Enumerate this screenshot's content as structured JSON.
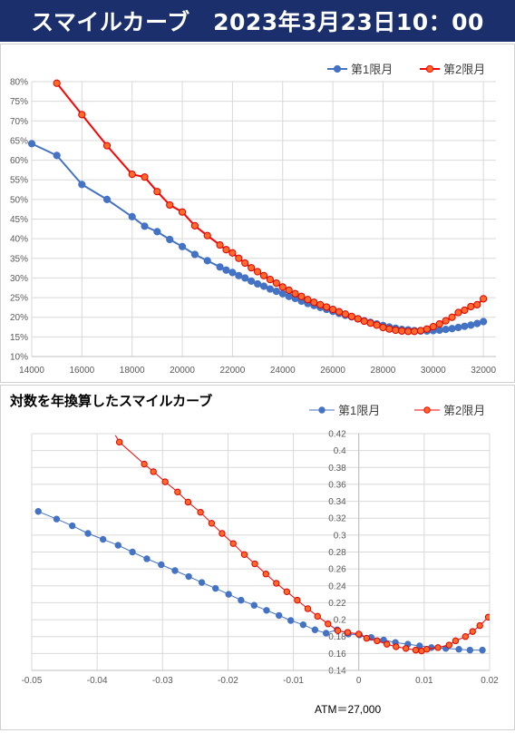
{
  "header": {
    "title": "スマイルカーブ　2023年3月23日10：00"
  },
  "chart_data": [
    {
      "type": "line",
      "title": "",
      "x_ticks": [
        "14000",
        "16000",
        "18000",
        "20000",
        "22000",
        "24000",
        "26000",
        "28000",
        "30000",
        "32000"
      ],
      "y_ticks": [
        "10%",
        "15%",
        "20%",
        "25%",
        "30%",
        "35%",
        "40%",
        "45%",
        "50%",
        "55%",
        "60%",
        "65%",
        "70%",
        "75%",
        "80%"
      ],
      "xlim": [
        14000,
        32500
      ],
      "ylim": [
        10,
        80
      ],
      "grid": true,
      "legend": "top-right",
      "series": [
        {
          "name": "第1限月",
          "color": "#4472c4",
          "points": [
            [
              14000,
              64.2
            ],
            [
              15000,
              61.2
            ],
            [
              16000,
              53.8
            ],
            [
              17000,
              50.0
            ],
            [
              18000,
              45.6
            ],
            [
              18500,
              43.2
            ],
            [
              19000,
              41.8
            ],
            [
              19500,
              39.8
            ],
            [
              20000,
              38.0
            ],
            [
              20500,
              36.0
            ],
            [
              21000,
              34.4
            ],
            [
              21500,
              32.8
            ],
            [
              21750,
              32.0
            ],
            [
              22000,
              31.4
            ],
            [
              22250,
              30.6
            ],
            [
              22500,
              30.0
            ],
            [
              22750,
              29.2
            ],
            [
              23000,
              28.5
            ],
            [
              23250,
              27.9
            ],
            [
              23500,
              27.2
            ],
            [
              23750,
              26.6
            ],
            [
              24000,
              26.0
            ],
            [
              24250,
              25.3
            ],
            [
              24500,
              24.8
            ],
            [
              24750,
              24.1
            ],
            [
              25000,
              23.5
            ],
            [
              25250,
              23.0
            ],
            [
              25500,
              22.5
            ],
            [
              25750,
              22.0
            ],
            [
              26000,
              21.5
            ],
            [
              26250,
              21.0
            ],
            [
              26500,
              20.5
            ],
            [
              26750,
              20.1
            ],
            [
              27000,
              19.6
            ],
            [
              27250,
              19.1
            ],
            [
              27500,
              18.7
            ],
            [
              27750,
              18.3
            ],
            [
              28000,
              17.9
            ],
            [
              28250,
              17.5
            ],
            [
              28500,
              17.2
            ],
            [
              28750,
              16.9
            ],
            [
              29000,
              16.8
            ],
            [
              29250,
              16.6
            ],
            [
              29500,
              16.5
            ],
            [
              29750,
              16.5
            ],
            [
              30000,
              16.6
            ],
            [
              30250,
              16.7
            ],
            [
              30500,
              16.9
            ],
            [
              30750,
              17.1
            ],
            [
              31000,
              17.4
            ],
            [
              31250,
              17.7
            ],
            [
              31500,
              18.0
            ],
            [
              31750,
              18.4
            ],
            [
              32000,
              18.9
            ]
          ]
        },
        {
          "name": "第2限月",
          "color": "#ff0000",
          "points": [
            [
              15000,
              79.6
            ],
            [
              16000,
              71.6
            ],
            [
              17000,
              63.7
            ],
            [
              18000,
              56.4
            ],
            [
              18500,
              55.7
            ],
            [
              19000,
              52.0
            ],
            [
              19500,
              48.6
            ],
            [
              20000,
              46.8
            ],
            [
              20500,
              43.3
            ],
            [
              21000,
              40.8
            ],
            [
              21500,
              38.4
            ],
            [
              21750,
              37.2
            ],
            [
              22000,
              36.4
            ],
            [
              22250,
              35.0
            ],
            [
              22500,
              33.8
            ],
            [
              22750,
              32.6
            ],
            [
              23000,
              31.6
            ],
            [
              23250,
              30.6
            ],
            [
              23500,
              29.6
            ],
            [
              23750,
              28.7
            ],
            [
              24000,
              27.7
            ],
            [
              24250,
              26.9
            ],
            [
              24500,
              26.0
            ],
            [
              24750,
              25.3
            ],
            [
              25000,
              24.5
            ],
            [
              25250,
              23.8
            ],
            [
              25500,
              23.2
            ],
            [
              25750,
              22.6
            ],
            [
              26000,
              22.0
            ],
            [
              26250,
              21.4
            ],
            [
              26500,
              20.8
            ],
            [
              26750,
              20.2
            ],
            [
              27000,
              19.6
            ],
            [
              27250,
              19.0
            ],
            [
              27500,
              18.5
            ],
            [
              27750,
              18.0
            ],
            [
              28000,
              17.4
            ],
            [
              28250,
              17.0
            ],
            [
              28500,
              16.7
            ],
            [
              28750,
              16.5
            ],
            [
              29000,
              16.4
            ],
            [
              29250,
              16.4
            ],
            [
              29500,
              16.6
            ],
            [
              29750,
              17.0
            ],
            [
              30000,
              17.6
            ],
            [
              30250,
              18.3
            ],
            [
              30500,
              19.1
            ],
            [
              30750,
              20.0
            ],
            [
              31000,
              21.2
            ],
            [
              31250,
              21.8
            ],
            [
              31500,
              22.7
            ],
            [
              31750,
              23.2
            ],
            [
              32000,
              24.7
            ]
          ]
        }
      ]
    },
    {
      "type": "line",
      "title": "対数を年換算したスマイルカーブ",
      "x_ticks": [
        "-0.05",
        "-0.04",
        "-0.03",
        "-0.02",
        "-0.01",
        "0",
        "0.01",
        "0.02"
      ],
      "y_ticks": [
        "0.14",
        "0.16",
        "0.18",
        "0.2",
        "0.22",
        "0.24",
        "0.26",
        "0.28",
        "0.3",
        "0.32",
        "0.34",
        "0.36",
        "0.38",
        "0.4",
        "0.42"
      ],
      "xlim": [
        -0.05,
        0.02
      ],
      "ylim": [
        0.14,
        0.42
      ],
      "grid": true,
      "legend": "top-right",
      "annotation": "ATM＝27,000",
      "series": [
        {
          "name": "第1限月",
          "color": "#4472c4",
          "points": [
            [
              -0.049,
              0.328
            ],
            [
              -0.0462,
              0.319
            ],
            [
              -0.0438,
              0.311
            ],
            [
              -0.0414,
              0.302
            ],
            [
              -0.0391,
              0.295
            ],
            [
              -0.0368,
              0.288
            ],
            [
              -0.0346,
              0.28
            ],
            [
              -0.0324,
              0.272
            ],
            [
              -0.0302,
              0.265
            ],
            [
              -0.0281,
              0.258
            ],
            [
              -0.026,
              0.251
            ],
            [
              -0.024,
              0.244
            ],
            [
              -0.0219,
              0.237
            ],
            [
              -0.0199,
              0.23
            ],
            [
              -0.018,
              0.223
            ],
            [
              -0.016,
              0.217
            ],
            [
              -0.0141,
              0.211
            ],
            [
              -0.0122,
              0.205
            ],
            [
              -0.0104,
              0.199
            ],
            [
              -0.0085,
              0.194
            ],
            [
              -0.0067,
              0.188
            ],
            [
              -0.005,
              0.184
            ],
            [
              -0.0033,
              0.188
            ],
            [
              -0.0016,
              0.183
            ],
            [
              0.0001,
              0.182
            ],
            [
              0.0019,
              0.179
            ],
            [
              0.0038,
              0.176
            ],
            [
              0.0056,
              0.173
            ],
            [
              0.0075,
              0.171
            ],
            [
              0.0093,
              0.169
            ],
            [
              0.0111,
              0.167
            ],
            [
              0.0133,
              0.166
            ],
            [
              0.0153,
              0.165
            ],
            [
              0.017,
              0.164
            ],
            [
              0.0189,
              0.164
            ]
          ]
        },
        {
          "name": "第2限月",
          "color": "#ff0000",
          "points": [
            [
              -0.0366,
              0.41
            ],
            [
              -0.0328,
              0.384
            ],
            [
              -0.0314,
              0.375
            ],
            [
              -0.0296,
              0.363
            ],
            [
              -0.0277,
              0.351
            ],
            [
              -0.0261,
              0.339
            ],
            [
              -0.0242,
              0.327
            ],
            [
              -0.0225,
              0.314
            ],
            [
              -0.0209,
              0.302
            ],
            [
              -0.0192,
              0.29
            ],
            [
              -0.0175,
              0.277
            ],
            [
              -0.0159,
              0.266
            ],
            [
              -0.0142,
              0.254
            ],
            [
              -0.0126,
              0.243
            ],
            [
              -0.011,
              0.233
            ],
            [
              -0.0094,
              0.223
            ],
            [
              -0.0078,
              0.213
            ],
            [
              -0.0063,
              0.204
            ],
            [
              -0.0047,
              0.195
            ],
            [
              -0.0032,
              0.187
            ],
            [
              -0.0017,
              0.185
            ],
            [
              0.0,
              0.183
            ],
            [
              0.0012,
              0.178
            ],
            [
              0.0028,
              0.175
            ],
            [
              0.0043,
              0.171
            ],
            [
              0.0057,
              0.168
            ],
            [
              0.0072,
              0.166
            ],
            [
              0.0087,
              0.164
            ],
            [
              0.0096,
              0.163
            ],
            [
              0.0104,
              0.165
            ],
            [
              0.0121,
              0.167
            ],
            [
              0.0138,
              0.17
            ],
            [
              0.0148,
              0.175
            ],
            [
              0.0163,
              0.18
            ],
            [
              0.0174,
              0.186
            ],
            [
              0.0185,
              0.193
            ],
            [
              0.0198,
              0.203
            ],
            [
              0.0208,
              0.213
            ]
          ]
        }
      ]
    }
  ]
}
